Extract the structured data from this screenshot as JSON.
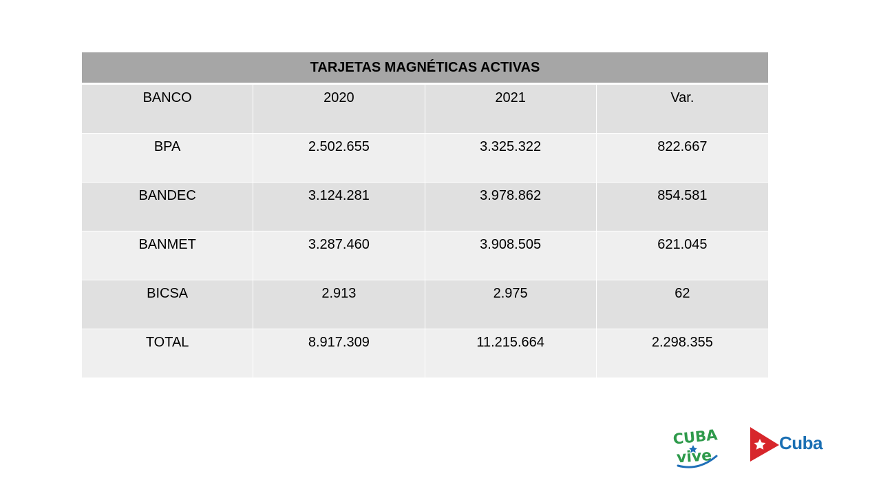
{
  "table": {
    "title": "TARJETAS MAGNÉTICAS ACTIVAS",
    "columns": [
      "BANCO",
      "2020",
      "2021",
      "Var."
    ],
    "rows": [
      [
        "BPA",
        "2.502.655",
        "3.325.322",
        "822.667"
      ],
      [
        "BANDEC",
        "3.124.281",
        "3.978.862",
        "854.581"
      ],
      [
        "BANMET",
        "3.287.460",
        "3.908.505",
        "621.045"
      ],
      [
        "BICSA",
        "2.913",
        "2.975",
        "62"
      ],
      [
        "TOTAL",
        "8.917.309",
        "11.215.664",
        "2.298.355"
      ]
    ]
  },
  "logos": {
    "cubavive_top": "CUBA",
    "cubavive_bottom": "vive",
    "cuba": "Cuba"
  },
  "colors": {
    "header_bg": "#a6a6a6",
    "row_dark": "#e0e0e0",
    "row_light": "#efefef",
    "cubavive_green": "#2e9a4b",
    "cubavive_blue": "#1f6fb8",
    "cuba_red": "#d7262b",
    "cuba_blue": "#1a6fb3"
  }
}
